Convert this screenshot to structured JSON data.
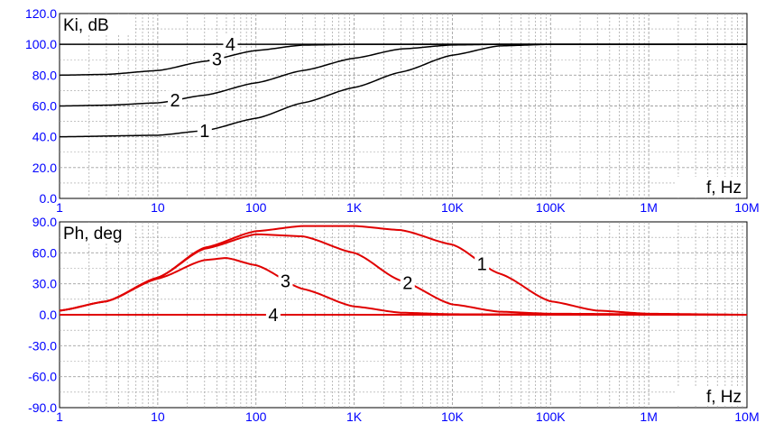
{
  "colors": {
    "tick": "#0000ff",
    "grid": "#a0a0a0",
    "gain": "#000000",
    "phase": "#e00000"
  },
  "chart_data": [
    {
      "type": "line",
      "id": "gain",
      "label": "Ki, dB",
      "xlabel": "f, Hz",
      "xscale": "log",
      "xlim": [
        1,
        10000000
      ],
      "ylim": [
        0,
        120
      ],
      "x_ticks": [
        "1",
        "10",
        "100",
        "1K",
        "10K",
        "100K",
        "1M",
        "10M"
      ],
      "y_ticks": [
        "120.0",
        "100.0",
        "80.0",
        "60.0",
        "40.0",
        "20.0",
        "0.0"
      ],
      "grid": true,
      "series": [
        {
          "name": "1",
          "x": [
            1,
            10,
            30,
            100,
            300,
            1000,
            3000,
            10000,
            30000,
            100000,
            10000000
          ],
          "y": [
            40,
            41,
            44,
            52,
            62,
            72,
            82,
            93,
            99,
            100,
            100
          ]
        },
        {
          "name": "2",
          "x": [
            1,
            3,
            10,
            30,
            100,
            300,
            1000,
            3000,
            10000,
            30000,
            10000000
          ],
          "y": [
            60,
            60.5,
            62,
            67,
            75,
            83,
            91,
            97,
            99.6,
            100,
            100
          ]
        },
        {
          "name": "3",
          "x": [
            1,
            3,
            10,
            30,
            100,
            300,
            1000,
            10000000
          ],
          "y": [
            80,
            80.5,
            83,
            89,
            96,
            99.5,
            100,
            100
          ]
        },
        {
          "name": "4",
          "x": [
            1,
            10000000
          ],
          "y": [
            100,
            100
          ]
        }
      ]
    },
    {
      "type": "line",
      "id": "phase",
      "label": "Ph, deg",
      "xlabel": "f, Hz",
      "xscale": "log",
      "xlim": [
        1,
        10000000
      ],
      "ylim": [
        -90,
        90
      ],
      "x_ticks": [
        "1",
        "10",
        "100",
        "1K",
        "10K",
        "100K",
        "1M",
        "10M"
      ],
      "y_ticks": [
        "90.0",
        "60.0",
        "30.0",
        "0.0",
        "-30.0",
        "-60.0",
        "-90.0"
      ],
      "grid": true,
      "series": [
        {
          "name": "1",
          "x": [
            1,
            3,
            10,
            30,
            100,
            300,
            1000,
            3000,
            10000,
            30000,
            100000,
            300000,
            1000000,
            10000000
          ],
          "y": [
            4,
            13,
            36,
            65,
            81,
            86,
            86,
            82,
            68,
            40,
            13,
            4,
            1,
            0
          ]
        },
        {
          "name": "2",
          "x": [
            1,
            3,
            10,
            30,
            100,
            300,
            1000,
            3000,
            10000,
            30000,
            100000,
            10000000
          ],
          "y": [
            4,
            13,
            36,
            64,
            78,
            76,
            60,
            33,
            10,
            3,
            1,
            0
          ]
        },
        {
          "name": "3",
          "x": [
            1,
            3,
            10,
            30,
            50,
            100,
            300,
            1000,
            3000,
            10000,
            10000000
          ],
          "y": [
            4,
            13,
            35,
            53,
            55,
            48,
            25,
            8,
            2,
            0.5,
            0
          ]
        },
        {
          "name": "4",
          "x": [
            1,
            10000000
          ],
          "y": [
            0,
            0
          ]
        }
      ]
    }
  ]
}
